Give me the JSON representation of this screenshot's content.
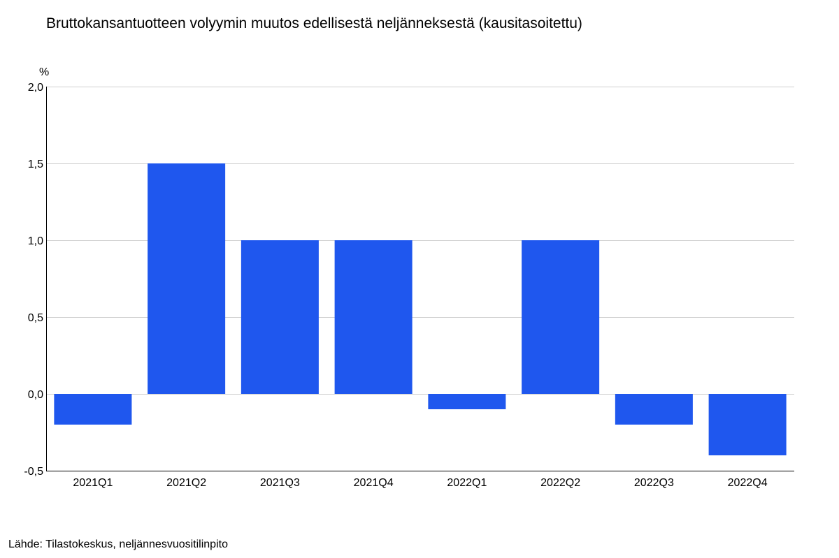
{
  "title": "Bruttokansantuotteen volyymin muutos edellisestä neljänneksestä (kausitasoitettu)",
  "source": "Lähde: Tilastokeskus, neljännesvuositilinpito",
  "colors": {
    "bar": "#1f57ee",
    "grid": "#cfcfcf",
    "axis": "#000000"
  },
  "chart_data": {
    "type": "bar",
    "categories": [
      "2021Q1",
      "2021Q2",
      "2021Q3",
      "2021Q4",
      "2022Q1",
      "2022Q2",
      "2022Q3",
      "2022Q4"
    ],
    "series": [
      {
        "values": [
          -0.2,
          1.5,
          1.0,
          1.0,
          -0.1,
          1.0,
          -0.2,
          -0.4
        ]
      }
    ],
    "title": "Bruttokansantuotteen volyymin muutos edellisestä neljänneksestä (kausitasoitettu)",
    "ylabel": "%",
    "ylim": [
      -0.5,
      2.0
    ],
    "yticks": [
      -0.5,
      0.0,
      0.5,
      1.0,
      1.5,
      2.0
    ],
    "ytick_labels": [
      "-0,5",
      "0,0",
      "0,5",
      "1,0",
      "1,5",
      "2,0"
    ],
    "grid": true,
    "legend": "none"
  }
}
